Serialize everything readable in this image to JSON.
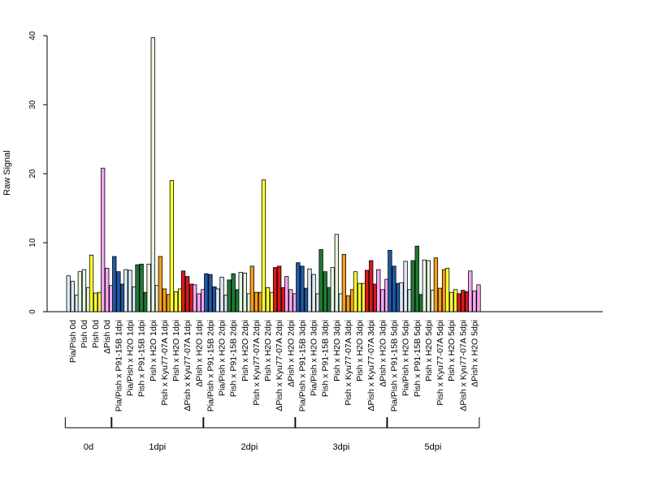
{
  "chart_data": {
    "type": "bar",
    "ylabel": "Raw Signal",
    "xlabel": "",
    "ylim": [
      0,
      40
    ],
    "yticks": [
      0,
      10,
      20,
      30,
      40
    ],
    "bars_per_category": 3,
    "categories": [
      {
        "label": "Pia/Pish 0d",
        "color": "#DEEBF7",
        "values": [
          5.2,
          4.4,
          2.4
        ]
      },
      {
        "label": "Pish 0d",
        "color": "#E5F5E0",
        "values": [
          5.8,
          6.1,
          3.5
        ]
      },
      {
        "label": "Pish 0d",
        "color": "#FFFF33",
        "values": [
          8.2,
          2.7,
          2.8
        ]
      },
      {
        "label": "ΔPish 0d",
        "color": "#F4A6F0",
        "values": [
          20.8,
          6.3,
          3.8
        ]
      },
      {
        "label": "Pia/Pish x P91-15B 1dpi",
        "color": "#1F5AA6",
        "values": [
          8.0,
          5.8,
          4.0
        ]
      },
      {
        "label": "Pia/Pish x H2O 1dpi",
        "color": "#DEEBF7",
        "values": [
          6.1,
          6.0,
          3.6
        ]
      },
      {
        "label": "Pish x P91-15B 1dpi",
        "color": "#1E7B34",
        "values": [
          6.8,
          6.9,
          2.8
        ]
      },
      {
        "label": "Pish x H2O 1dpi",
        "color": "#E5F5E0",
        "values": [
          6.9,
          39.7,
          3.8
        ]
      },
      {
        "label": "Pish x Kyu77-07A 1dpi",
        "color": "#F59E1B",
        "values": [
          8.0,
          3.3,
          2.5
        ]
      },
      {
        "label": "Pish x H2O 1dpi",
        "color": "#FFFF33",
        "values": [
          19.0,
          2.9,
          3.3
        ]
      },
      {
        "label": "ΔPish x Kyu77-07A 1dpi",
        "color": "#D7191C",
        "values": [
          5.9,
          5.1,
          4.0
        ]
      },
      {
        "label": "ΔPish x H2O 1dpi",
        "color": "#F4A6F0",
        "values": [
          3.9,
          2.6,
          3.2
        ]
      },
      {
        "label": "Pia/Pish x P91-15B 2dpi",
        "color": "#1F5AA6",
        "values": [
          5.5,
          5.4,
          3.6
        ]
      },
      {
        "label": "Pia/Pish x H2O 2dpi",
        "color": "#DEEBF7",
        "values": [
          3.3,
          5.0,
          2.4
        ]
      },
      {
        "label": "Pish x P91-15B 2dpi",
        "color": "#1E7B34",
        "values": [
          4.6,
          5.5,
          3.2
        ]
      },
      {
        "label": "Pish x H2O 2dpi",
        "color": "#E5F5E0",
        "values": [
          5.7,
          5.6,
          2.6
        ]
      },
      {
        "label": "Pish x Kyu77-07A 2dpi",
        "color": "#F59E1B",
        "values": [
          6.6,
          2.8,
          2.8
        ]
      },
      {
        "label": "Pish x H2O 2dpi",
        "color": "#FFFF33",
        "values": [
          19.1,
          3.5,
          2.8
        ]
      },
      {
        "label": "ΔPish x Kyu77-07A 2dpi",
        "color": "#D7191C",
        "values": [
          6.4,
          6.6,
          3.5
        ]
      },
      {
        "label": "ΔPish x H2O 2dpi",
        "color": "#F4A6F0",
        "values": [
          5.1,
          3.2,
          2.6
        ]
      },
      {
        "label": "Pia/Pish x P91-15B 3dpi",
        "color": "#1F5AA6",
        "values": [
          7.1,
          6.6,
          3.4
        ]
      },
      {
        "label": "Pia/Pish x H2O 3dpi",
        "color": "#DEEBF7",
        "values": [
          6.2,
          5.4,
          2.6
        ]
      },
      {
        "label": "Pish x P91-15B 3dpi",
        "color": "#1E7B34",
        "values": [
          9.0,
          5.8,
          3.5
        ]
      },
      {
        "label": "Pish x H2O 3dpi",
        "color": "#E5F5E0",
        "values": [
          6.4,
          11.2,
          2.6
        ]
      },
      {
        "label": "Pish x Kyu77-07A 3dpi",
        "color": "#F59E1B",
        "values": [
          8.3,
          2.3,
          3.2
        ]
      },
      {
        "label": "Pish x H2O 3dpi",
        "color": "#FFFF33",
        "values": [
          5.8,
          4.1,
          4.1
        ]
      },
      {
        "label": "ΔPish x Kyu77-07A 3dpi",
        "color": "#D7191C",
        "values": [
          6.0,
          7.4,
          4.0
        ]
      },
      {
        "label": "ΔPish x H2O 3dpi",
        "color": "#F4A6F0",
        "values": [
          6.1,
          3.2,
          4.7
        ]
      },
      {
        "label": "Pia/Pish x P91-15B 5dpi",
        "color": "#1F5AA6",
        "values": [
          8.9,
          6.6,
          4.1
        ]
      },
      {
        "label": "Pia/Pish x H2O 5dpi",
        "color": "#DEEBF7",
        "values": [
          4.2,
          7.3,
          3.2
        ]
      },
      {
        "label": "Pish x P91-15B 5dpi",
        "color": "#1E7B34",
        "values": [
          7.4,
          9.5,
          2.5
        ]
      },
      {
        "label": "Pish x H2O 5dpi",
        "color": "#E5F5E0",
        "values": [
          7.5,
          7.4,
          3.1
        ]
      },
      {
        "label": "Pish x Kyu77-07A 5dpi",
        "color": "#F59E1B",
        "values": [
          7.8,
          3.4,
          6.1
        ]
      },
      {
        "label": "Pish x H2O 5dpi",
        "color": "#FFFF33",
        "values": [
          6.3,
          2.8,
          3.2
        ]
      },
      {
        "label": "ΔPish x Kyu77-07A 5dpi",
        "color": "#D7191C",
        "values": [
          2.6,
          3.1,
          2.9
        ]
      },
      {
        "label": "ΔPish x H2O 5dpi",
        "color": "#F4A6F0",
        "values": [
          5.9,
          3.0,
          3.9
        ]
      }
    ],
    "groups": [
      {
        "label": "0d",
        "start": 0,
        "end": 3
      },
      {
        "label": "1dpi",
        "start": 4,
        "end": 11
      },
      {
        "label": "2dpi",
        "start": 12,
        "end": 19
      },
      {
        "label": "3dpi",
        "start": 20,
        "end": 27
      },
      {
        "label": "5dpi",
        "start": 28,
        "end": 35
      }
    ],
    "grid": false,
    "legend": "none"
  }
}
